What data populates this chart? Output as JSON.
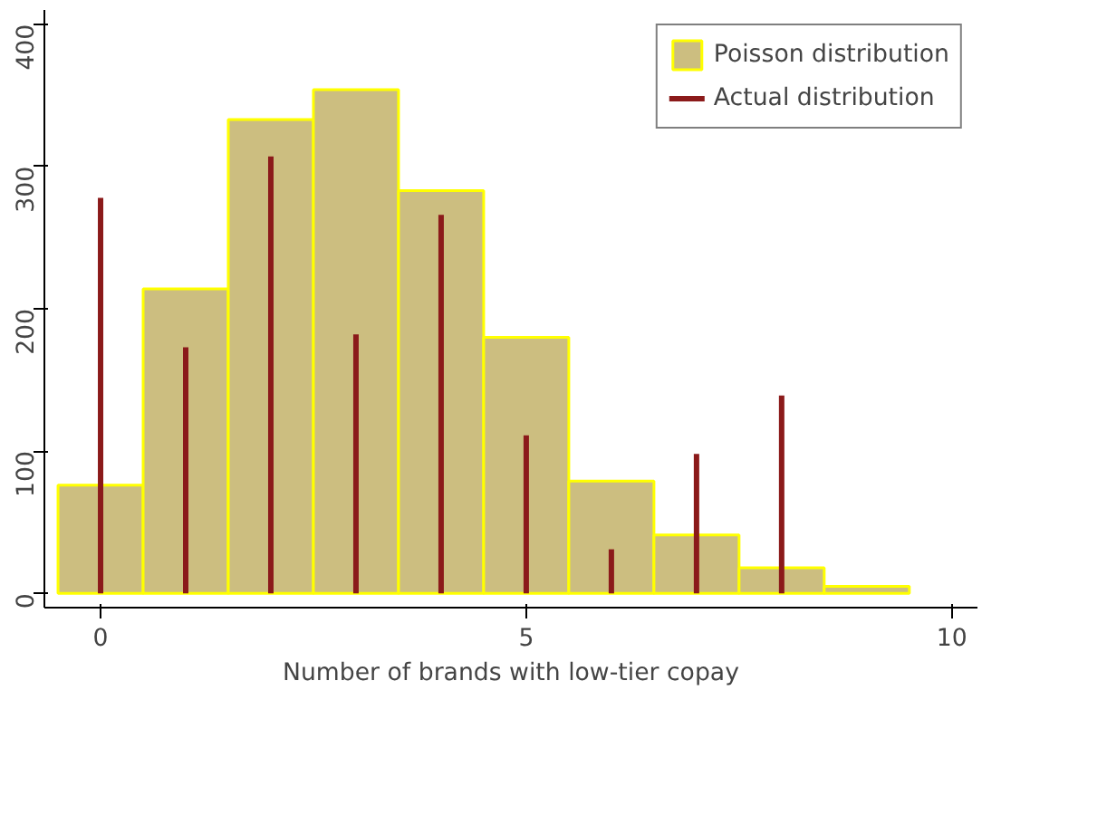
{
  "chart_data": {
    "type": "histogram",
    "xlabel": "Number of brands with low-tier copay",
    "xlim": [
      -0.66,
      10.3
    ],
    "ylim": [
      -10,
      410
    ],
    "xticks": [
      0,
      5,
      10
    ],
    "yticks": [
      0,
      100,
      200,
      300,
      400
    ],
    "grid": false,
    "legend": "top right",
    "series": [
      {
        "name": "Poisson distribution",
        "color": "#ccbe80",
        "bins": [
          -0.5,
          0.5,
          1.5,
          2.5,
          3.5,
          4.5,
          5.5,
          6.5,
          7.5,
          8.5,
          9.5
        ],
        "values": [
          76,
          214,
          333,
          354,
          283,
          180,
          79,
          41,
          18,
          5
        ]
      },
      {
        "name": "Actual distribution",
        "type": "bar",
        "color": "#8b1a1a",
        "x": [
          0,
          1,
          2,
          3,
          4,
          5,
          6,
          7,
          8
        ],
        "values": [
          278,
          173,
          307,
          182,
          266,
          111,
          31,
          98,
          139
        ]
      }
    ]
  }
}
